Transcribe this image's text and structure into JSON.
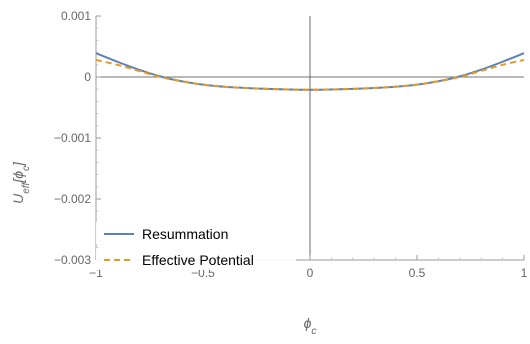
{
  "chart_data": {
    "type": "line",
    "title": "",
    "xlabel": "ϕ_c",
    "ylabel": "U_eff[ϕ_c]",
    "xlim": [
      -1,
      1
    ],
    "ylim": [
      -0.003,
      0.001
    ],
    "x_ticks": [
      {
        "value": -1,
        "label": "−1"
      },
      {
        "value": -0.5,
        "label": "−0.5"
      },
      {
        "value": 0,
        "label": "0"
      },
      {
        "value": 0.5,
        "label": "0.5"
      },
      {
        "value": 1,
        "label": "1"
      }
    ],
    "y_ticks": [
      {
        "value": 0.001,
        "label": "0.001"
      },
      {
        "value": 0,
        "label": "0"
      },
      {
        "value": -0.001,
        "label": "−0.001"
      },
      {
        "value": -0.002,
        "label": "−0.002"
      },
      {
        "value": -0.003,
        "label": "−0.003"
      }
    ],
    "grid": false,
    "legend_position": "bottom-left",
    "series": [
      {
        "name": "Resummation",
        "color": "#5E81B5",
        "dash": "solid",
        "x": [
          -1,
          -0.9,
          -0.8,
          -0.7,
          -0.6,
          -0.5,
          -0.4,
          -0.3,
          -0.2,
          -0.1,
          0,
          0.1,
          0.2,
          0.3,
          0.4,
          0.5,
          0.6,
          0.7,
          0.8,
          0.9,
          1
        ],
        "y": [
          0.00039,
          0.00025,
          0.00012,
          1e-05,
          -7e-05,
          -0.000125,
          -0.00016,
          -0.00018,
          -0.000195,
          -0.000205,
          -0.00021,
          -0.000205,
          -0.000195,
          -0.00018,
          -0.00016,
          -0.000125,
          -7e-05,
          1e-05,
          0.00012,
          0.00025,
          0.00039
        ]
      },
      {
        "name": "Effective Potential",
        "color": "#E19C24",
        "dash": "dashed",
        "x": [
          -1,
          -0.9,
          -0.8,
          -0.7,
          -0.6,
          -0.5,
          -0.4,
          -0.3,
          -0.2,
          -0.1,
          0,
          0.1,
          0.2,
          0.3,
          0.4,
          0.5,
          0.6,
          0.7,
          0.8,
          0.9,
          1
        ],
        "y": [
          0.00028,
          0.0002,
          0.0001,
          0.0,
          -7e-05,
          -0.000125,
          -0.00016,
          -0.00018,
          -0.000195,
          -0.000205,
          -0.00021,
          -0.000205,
          -0.000195,
          -0.00018,
          -0.00016,
          -0.000125,
          -7e-05,
          0.0,
          0.0001,
          0.0002,
          0.00028
        ]
      }
    ]
  }
}
